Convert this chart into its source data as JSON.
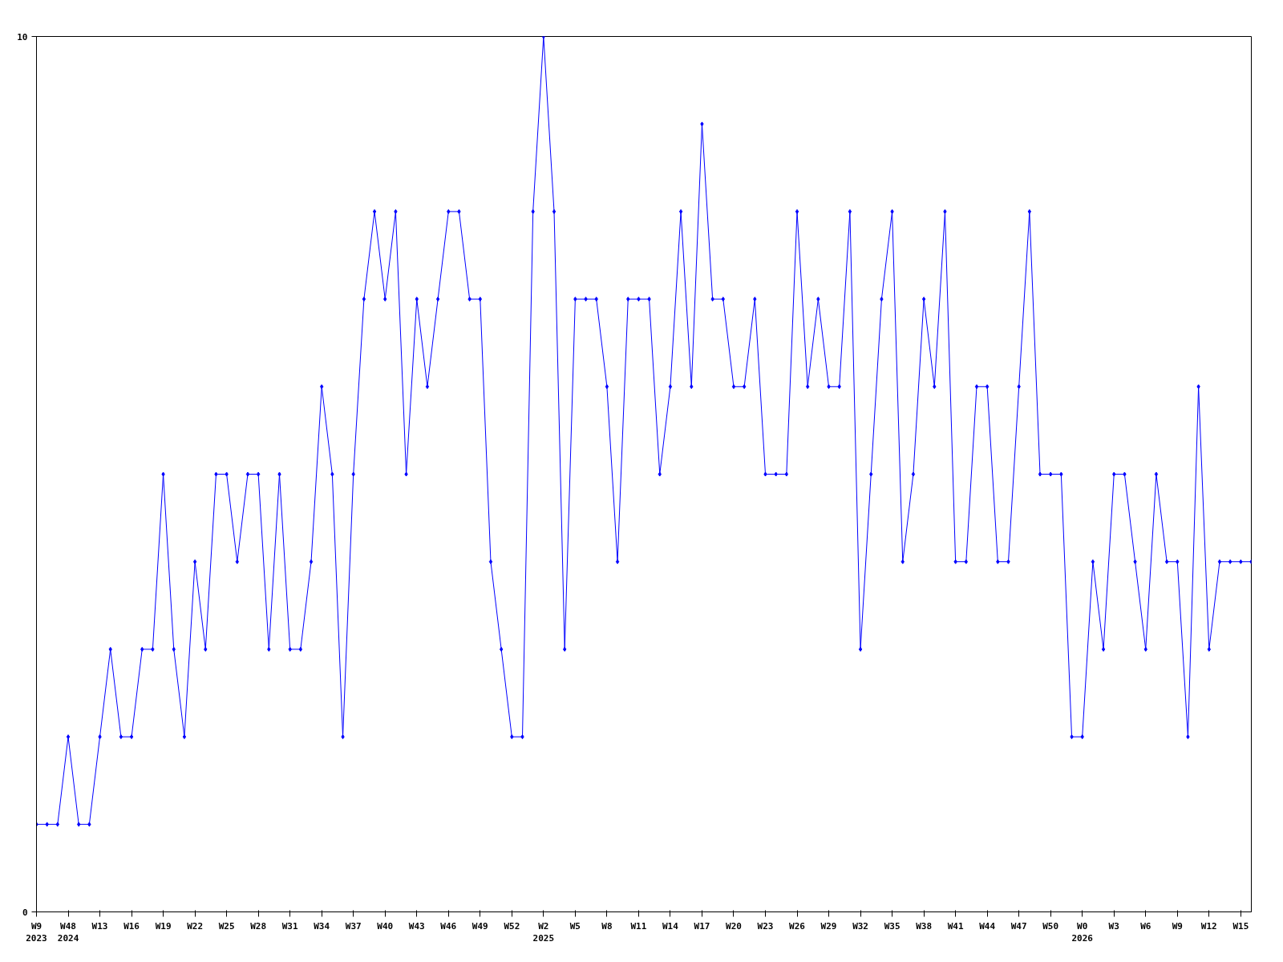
{
  "chart_data": {
    "type": "line",
    "categories": [
      "W9\n2023",
      null,
      null,
      "W48\n2024",
      null,
      null,
      "W13",
      null,
      null,
      "W16",
      null,
      null,
      "W19",
      null,
      null,
      "W22",
      null,
      null,
      "W25",
      null,
      null,
      "W28",
      null,
      null,
      "W31",
      null,
      null,
      "W34",
      null,
      null,
      "W37",
      null,
      null,
      "W40",
      null,
      null,
      "W43",
      null,
      null,
      "W46",
      null,
      null,
      "W49",
      null,
      null,
      "W52",
      null,
      null,
      "W2\n2025",
      null,
      null,
      "W5",
      null,
      null,
      "W8",
      null,
      null,
      "W11",
      null,
      null,
      "W14",
      null,
      null,
      "W17",
      null,
      null,
      "W20",
      null,
      null,
      "W23",
      null,
      null,
      "W26",
      null,
      null,
      "W29",
      null,
      null,
      "W32",
      null,
      null,
      "W35",
      null,
      null,
      "W38",
      null,
      null,
      "W41",
      null,
      null,
      "W44",
      null,
      null,
      "W47",
      null,
      null,
      "W50",
      null,
      null,
      "W0\n2026",
      null,
      null,
      "W3",
      null,
      null,
      "W6",
      null,
      null,
      "W9",
      null,
      null,
      "W12",
      null,
      null,
      "W15",
      null
    ],
    "series": [
      {
        "color": "#0000ff",
        "values": [
          1,
          1,
          1,
          2,
          1,
          1,
          2,
          3,
          2,
          2,
          3,
          3,
          5,
          3,
          2,
          4,
          3,
          5,
          5,
          4,
          5,
          5,
          3,
          5,
          3,
          3,
          4,
          6,
          5,
          2,
          5,
          7,
          8,
          7,
          8,
          5,
          7,
          6,
          7,
          8,
          8,
          7,
          7,
          4,
          3,
          2,
          2,
          8,
          10,
          8,
          3,
          7,
          7,
          7,
          6,
          4,
          7,
          7,
          7,
          5,
          6,
          8,
          6,
          9,
          7,
          7,
          6,
          6,
          7,
          5,
          5,
          5,
          8,
          6,
          7,
          6,
          6,
          8,
          3,
          5,
          7,
          8,
          4,
          5,
          7,
          6,
          8,
          4,
          4,
          6,
          6,
          4,
          4,
          6,
          8,
          5,
          5,
          5,
          2,
          2,
          4,
          3,
          5,
          5,
          4,
          3,
          5,
          4,
          4,
          2,
          6,
          3,
          4,
          4,
          4,
          4
        ]
      }
    ],
    "ylim": [
      0,
      10
    ],
    "yticks": [
      0,
      10
    ],
    "marker": "diamond",
    "line_style": "solid"
  }
}
